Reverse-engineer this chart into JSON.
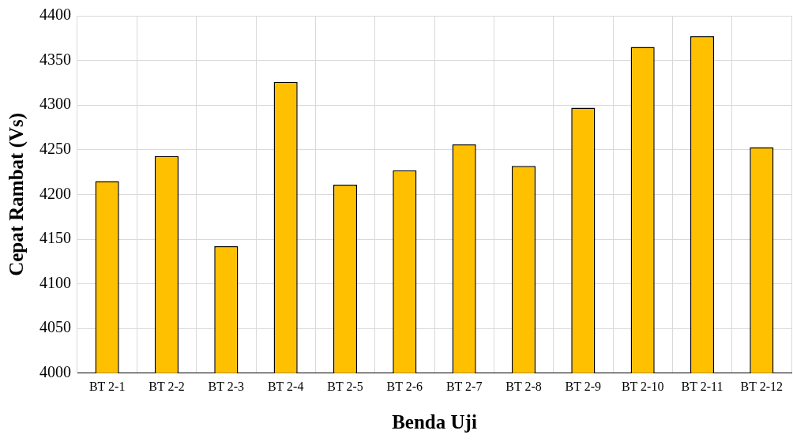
{
  "chart_data": {
    "type": "bar",
    "xlabel": "Benda Uji",
    "ylabel": "Cepat Rambat (Vs)",
    "categories": [
      "BT 2-1",
      "BT 2-2",
      "BT 2-3",
      "BT 2-4",
      "BT 2-5",
      "BT 2-6",
      "BT 2-7",
      "BT 2-8",
      "BT 2-9",
      "BT 2-10",
      "BT 2-11",
      "BT 2-12"
    ],
    "values": [
      4215,
      4243,
      4142,
      4326,
      4211,
      4227,
      4256,
      4232,
      4297,
      4365,
      4377,
      4253
    ],
    "color": "#ffc000",
    "ylim": [
      4000,
      4400
    ],
    "yticks": [
      4000,
      4050,
      4100,
      4150,
      4200,
      4250,
      4300,
      4350,
      4400
    ],
    "grid": true
  }
}
